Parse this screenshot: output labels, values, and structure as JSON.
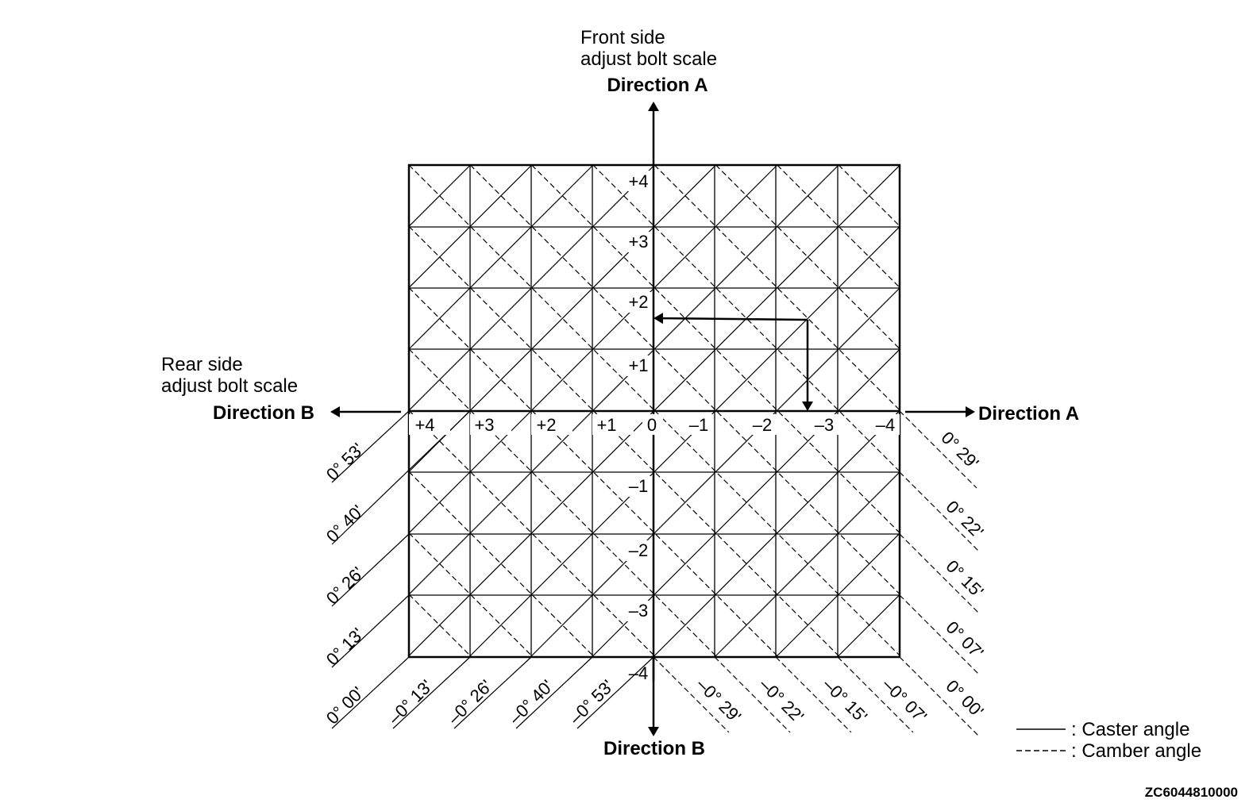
{
  "front_scale": {
    "line1": "Front side",
    "line2": "adjust bolt scale",
    "direction_label": "Direction A"
  },
  "rear_scale": {
    "line1": "Rear side",
    "line2": "adjust bolt scale",
    "direction_label": "Direction B"
  },
  "right_direction": "Direction A",
  "bottom_direction": "Direction B",
  "x_ticks": [
    "+4",
    "+3",
    "+2",
    "+1",
    "0",
    "–1",
    "–2",
    "–3",
    "–4"
  ],
  "y_ticks_top": [
    "+4",
    "+3",
    "+2",
    "+1"
  ],
  "y_ticks_bottom": [
    "–1",
    "–2",
    "–3",
    "–4"
  ],
  "caster_angles_left": [
    "0° 53'",
    "0° 40'",
    "0° 26'",
    "0° 13'",
    "0° 00'"
  ],
  "caster_angles_bottom": [
    "–0° 13'",
    "–0° 26'",
    "–0° 40'",
    "–0° 53'"
  ],
  "camber_angles_right": [
    "0° 29'",
    "0° 22'",
    "0° 15'",
    "0° 07'",
    "0° 00'"
  ],
  "camber_angles_bottom": [
    "–0° 29'",
    "–0° 22'",
    "–0° 15'",
    "–0° 07'"
  ],
  "legend": {
    "caster": ": Caster angle",
    "camber": ": Camber angle"
  },
  "figure_code": "ZC6044810000"
}
